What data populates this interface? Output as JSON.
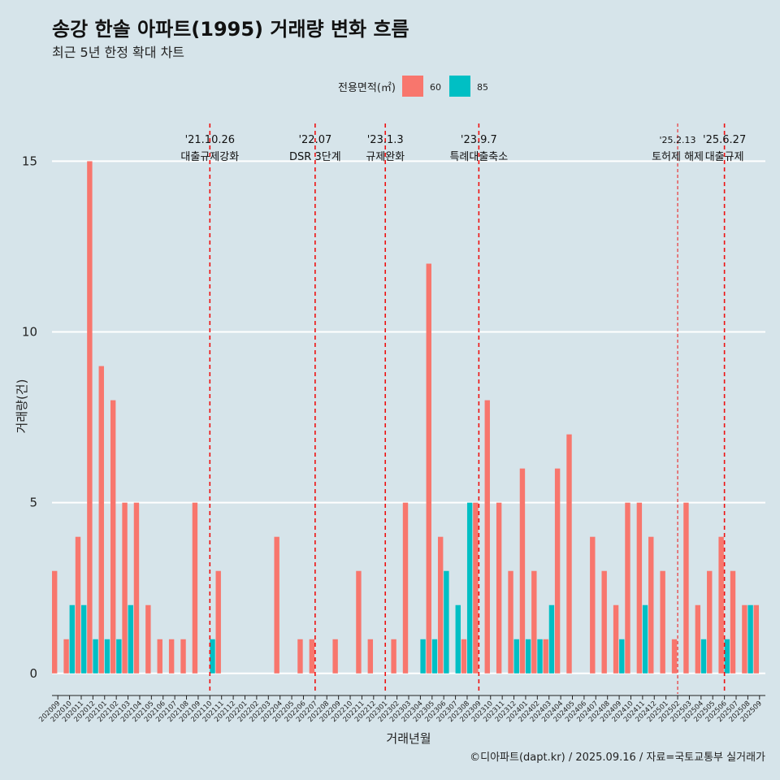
{
  "chart_data": {
    "type": "bar",
    "title": "송강 한솔 아파트(1995) 거래량 변화 흐름",
    "subtitle": "최근 5년 한정 확대 차트",
    "xlabel": "거래년월",
    "ylabel": "거래량(건)",
    "caption": "©디아파트(dapt.kr) / 2025.09.16 / 자료=국토교통부 실거래가",
    "legend": {
      "title": "전용면적(㎡)",
      "position": "top"
    },
    "ylim": [
      -0.6,
      16.2
    ],
    "yticks": [
      0,
      5,
      10,
      15
    ],
    "grid": true,
    "colors": {
      "60": "#f8766d",
      "85": "#00bfc4"
    },
    "categories": [
      "202009",
      "202010",
      "202011",
      "202012",
      "202101",
      "202102",
      "202103",
      "202104",
      "202105",
      "202106",
      "202107",
      "202108",
      "202109",
      "202110",
      "202111",
      "202112",
      "202201",
      "202202",
      "202203",
      "202204",
      "202205",
      "202206",
      "202207",
      "202208",
      "202209",
      "202210",
      "202211",
      "202212",
      "202301",
      "202302",
      "202303",
      "202304",
      "202305",
      "202306",
      "202307",
      "202308",
      "202309",
      "202310",
      "202311",
      "202312",
      "202401",
      "202402",
      "202403",
      "202404",
      "202405",
      "202406",
      "202407",
      "202408",
      "202409",
      "202410",
      "202411",
      "202412",
      "202501",
      "202502",
      "202503",
      "202504",
      "202505",
      "202506",
      "202507",
      "202508",
      "202509"
    ],
    "series": [
      {
        "name": "60",
        "values": [
          3,
          1,
          4,
          15,
          9,
          8,
          5,
          5,
          2,
          1,
          1,
          1,
          5,
          0,
          3,
          0,
          0,
          0,
          0,
          4,
          0,
          1,
          1,
          0,
          1,
          0,
          3,
          1,
          0,
          1,
          5,
          0,
          12,
          4,
          0,
          1,
          5,
          8,
          5,
          3,
          6,
          3,
          1,
          6,
          7,
          0,
          4,
          3,
          2,
          5,
          5,
          4,
          3,
          1,
          5,
          2,
          3,
          4,
          3,
          2,
          2
        ]
      },
      {
        "name": "85",
        "values": [
          0,
          2,
          2,
          1,
          1,
          1,
          2,
          0,
          0,
          0,
          0,
          0,
          0,
          1,
          0,
          0,
          0,
          0,
          0,
          0,
          0,
          0,
          0,
          0,
          0,
          0,
          0,
          0,
          0,
          0,
          0,
          1,
          1,
          3,
          2,
          5,
          0,
          0,
          0,
          1,
          1,
          1,
          2,
          0,
          0,
          0,
          0,
          0,
          1,
          0,
          2,
          0,
          0,
          0,
          0,
          1,
          0,
          1,
          0,
          2,
          0
        ]
      }
    ],
    "events": [
      {
        "date": "'21.10.26",
        "label": "대출규제강화",
        "category": "202110",
        "style": "bold"
      },
      {
        "date": "'22.07",
        "label": "DSR 3단계",
        "category": "202207",
        "style": "bold"
      },
      {
        "date": "'23.1.3",
        "label": "규제완화",
        "category": "202301",
        "style": "bold"
      },
      {
        "date": "'23.9.7",
        "label": "특례대출축소",
        "category": "202309",
        "style": "bold"
      },
      {
        "date": "'25.2.13",
        "label": "토허제 해제",
        "category": "202502",
        "style": "thin"
      },
      {
        "date": "'25.6.27",
        "label": "대출규제",
        "category": "202506",
        "style": "bold"
      }
    ]
  }
}
